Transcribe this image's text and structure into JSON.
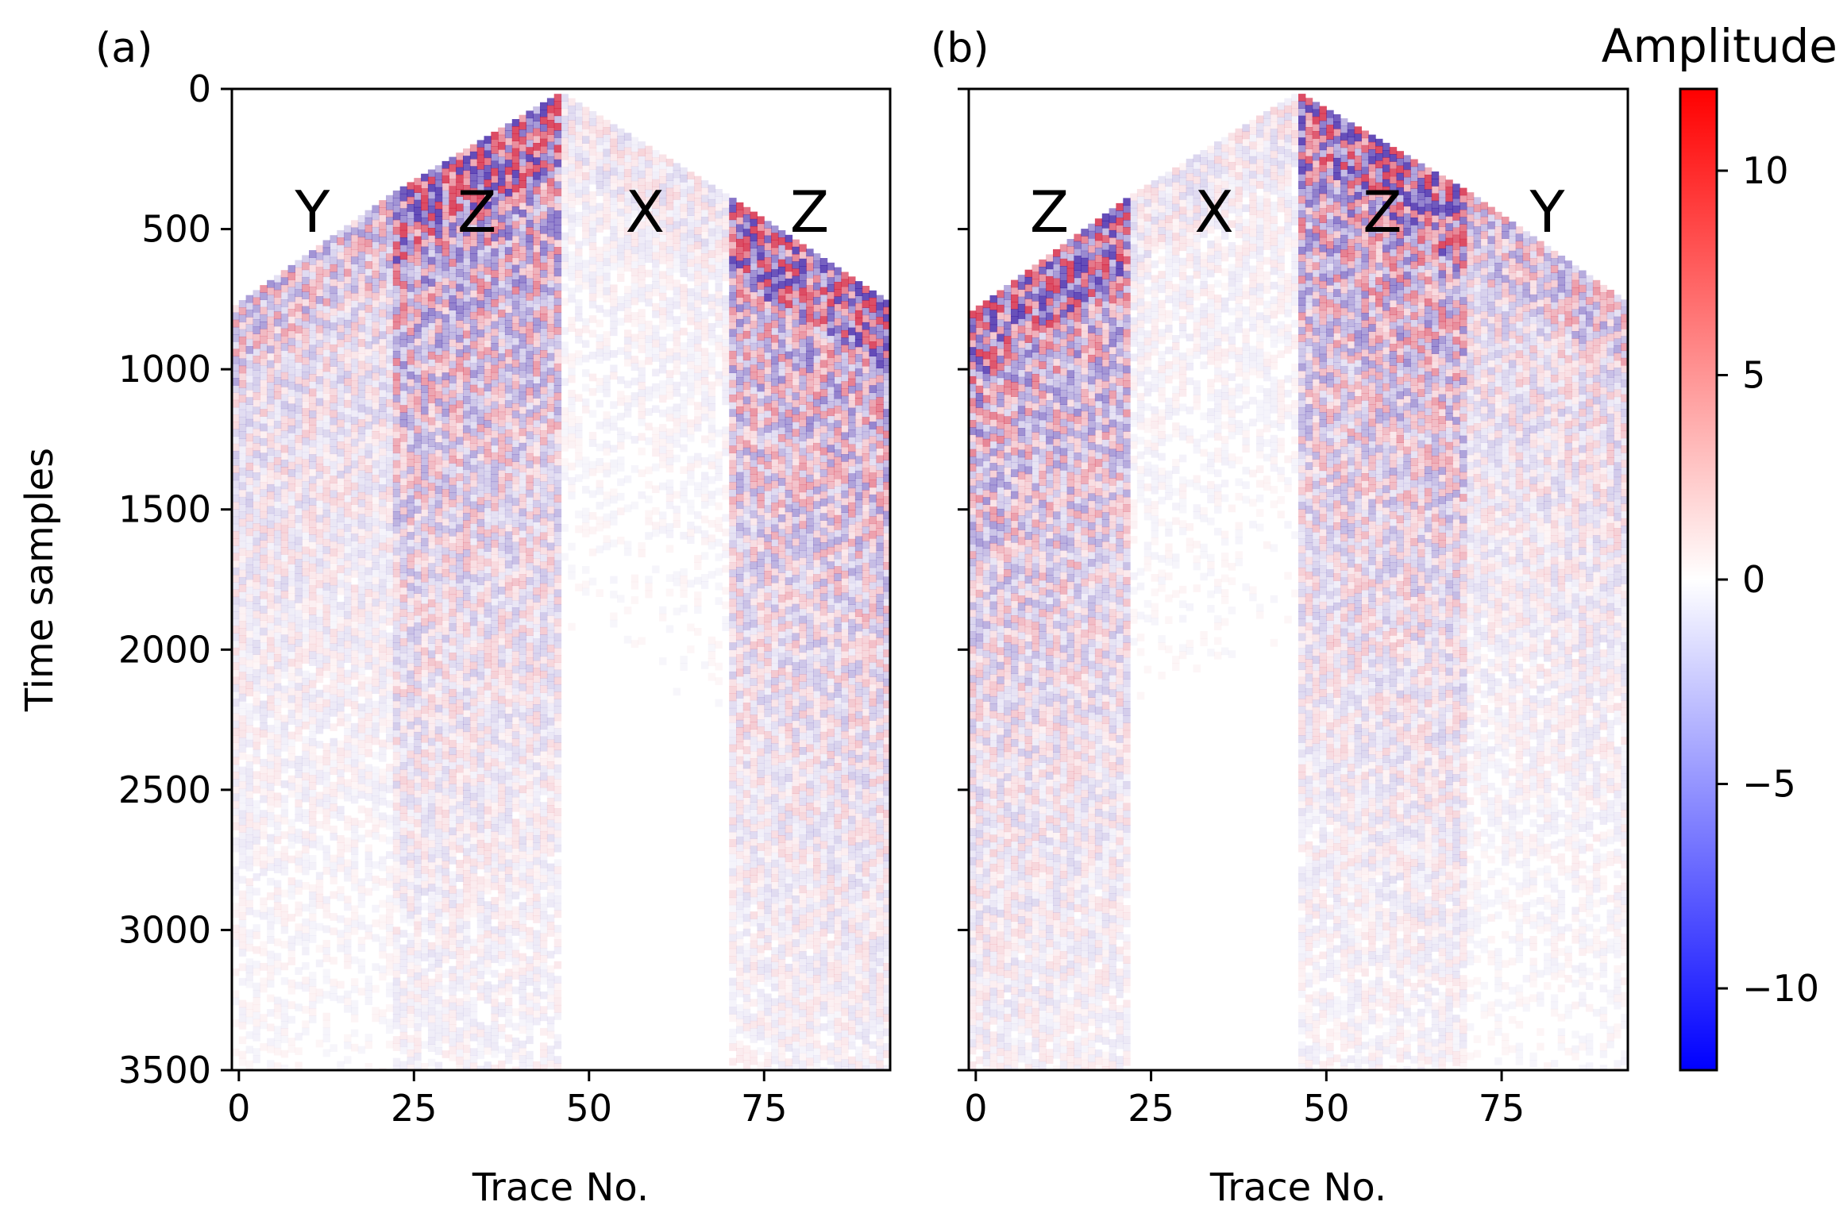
{
  "chart_data": [
    {
      "type": "heatmap",
      "panel_label": "(a)",
      "xlabel": "Trace No.",
      "ylabel": "Time samples",
      "xlim": [
        -1,
        93
      ],
      "ylim": [
        3500,
        0
      ],
      "xticks": [
        0,
        25,
        50,
        75
      ],
      "yticks": [
        0,
        500,
        1000,
        1500,
        2000,
        2500,
        3000,
        3500
      ],
      "grid": false,
      "segments": [
        {
          "component": "Y",
          "trace_start": -1,
          "trace_end": 22,
          "onset_start": 780,
          "onset_end": 370,
          "strength": 0.45
        },
        {
          "component": "Z",
          "trace_start": 22,
          "trace_end": 46,
          "onset_start": 370,
          "onset_end": 10,
          "strength": 1.0
        },
        {
          "component": "X",
          "trace_start": 46,
          "trace_end": 70,
          "onset_start": 10,
          "onset_end": 380,
          "strength": 0.18
        },
        {
          "component": "Z",
          "trace_start": 70,
          "trace_end": 93,
          "onset_start": 380,
          "onset_end": 760,
          "strength": 0.95
        }
      ]
    },
    {
      "type": "heatmap",
      "panel_label": "(b)",
      "xlabel": "Trace No.",
      "ylabel": "",
      "xlim": [
        -1,
        93
      ],
      "ylim": [
        3500,
        0
      ],
      "xticks": [
        0,
        25,
        50,
        75
      ],
      "yticks": [
        0,
        500,
        1000,
        1500,
        2000,
        2500,
        3000,
        3500
      ],
      "grid": false,
      "segments": [
        {
          "component": "Z",
          "trace_start": -1,
          "trace_end": 22,
          "onset_start": 800,
          "onset_end": 380,
          "strength": 0.95
        },
        {
          "component": "X",
          "trace_start": 22,
          "trace_end": 46,
          "onset_start": 380,
          "onset_end": 10,
          "strength": 0.18
        },
        {
          "component": "Z",
          "trace_start": 46,
          "trace_end": 70,
          "onset_start": 10,
          "onset_end": 360,
          "strength": 1.0
        },
        {
          "component": "Y",
          "trace_start": 70,
          "trace_end": 93,
          "onset_start": 360,
          "onset_end": 760,
          "strength": 0.45
        }
      ]
    }
  ],
  "colorbar": {
    "title": "Amplitude",
    "range": [
      -12,
      12
    ],
    "ticks": [
      10,
      5,
      0,
      -5,
      -10
    ],
    "tick_labels": [
      "10",
      "5",
      "0",
      "−5",
      "−10"
    ],
    "colors": {
      "low": "#0000ff",
      "mid": "#ffffff",
      "high": "#ff0000"
    }
  }
}
